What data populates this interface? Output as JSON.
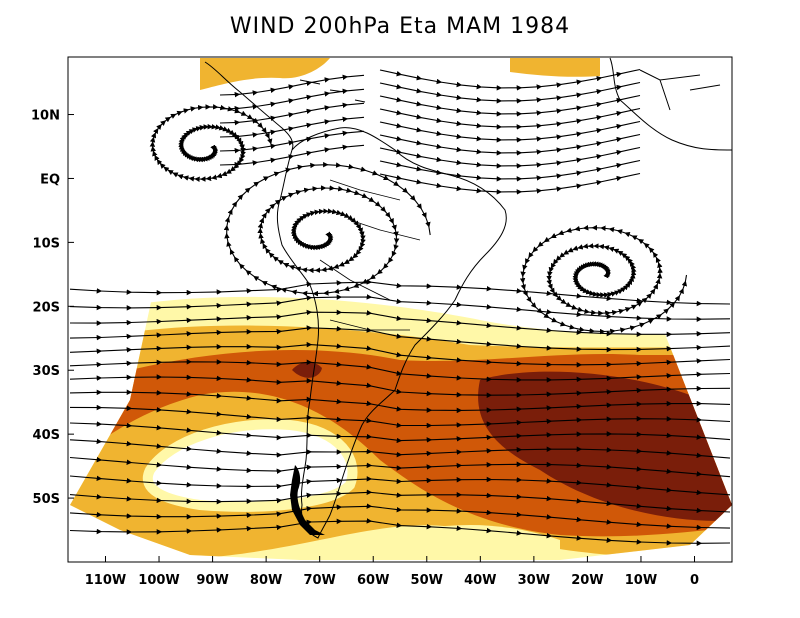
{
  "title": "WIND 200hPa Eta MAM 1984",
  "map": {
    "lat_labels": [
      "10N",
      "EQ",
      "10S",
      "20S",
      "30S",
      "40S",
      "50S"
    ],
    "lat_values": [
      10,
      0,
      -10,
      -20,
      -30,
      -40,
      -50
    ],
    "lon_labels": [
      "110W",
      "100W",
      "90W",
      "80W",
      "70W",
      "60W",
      "50W",
      "40W",
      "30W",
      "20W",
      "10W",
      "0"
    ],
    "lon_values": [
      -110,
      -100,
      -90,
      -80,
      -70,
      -60,
      -50,
      -40,
      -30,
      -20,
      -10,
      0
    ],
    "extent": {
      "lon": [
        -117,
        7
      ],
      "lat": [
        -60,
        19
      ]
    },
    "shading_colors": [
      "#fff8a8",
      "#f0b430",
      "#d05808",
      "#7a1e0a"
    ],
    "streamline_color": "#000000",
    "coastline_color": "#000000"
  }
}
